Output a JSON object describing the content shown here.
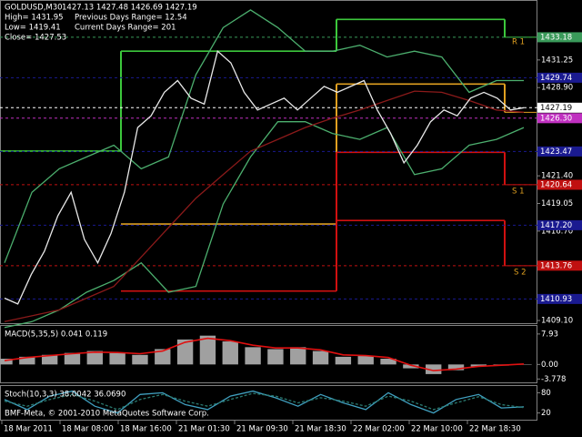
{
  "header": {
    "symbol": "GOLDUSD,M30",
    "ohlc": "1427.13 1427.48 1426.69 1427.19",
    "high": "High= 1431.95",
    "prev_range": "Previous Days Range= 12.54",
    "low": "Low= 1419.41",
    "cur_range": "Current Days Range= 201",
    "close": "Close= 1427.53"
  },
  "footer": "BMF-Meta, © 2001-2010 MetaQuotes Software Corp.",
  "time_axis": [
    "18 Mar 2011",
    "18 Mar 08:00",
    "18 Mar 16:00",
    "21 Mar 01:30",
    "21 Mar 09:30",
    "21 Mar 18:30",
    "22 Mar 02:00",
    "22 Mar 10:00",
    "22 Mar 18:30"
  ],
  "chart_data": [
    {
      "type": "line",
      "ylim": [
        1408.87,
        1436.27
      ],
      "yticks": [
        1431.25,
        {
          "value": 1428.9,
          "label": "1428.90"
        },
        {
          "value": 1421.4,
          "label": "1421.40"
        },
        1419.05,
        {
          "value": 1416.7,
          "label": "1416.70"
        },
        {
          "value": 1409.1,
          "label": "1409.10"
        }
      ],
      "series": [
        {
          "color": "#4caf6e",
          "values": [
            1414,
            1420,
            1422,
            1423,
            1424,
            1422,
            1423,
            1430,
            1434,
            1435.5,
            1434,
            1432,
            1432,
            1432.5,
            1431.5,
            1432,
            1431.5,
            1428.5,
            1429.5,
            1429.5
          ]
        },
        {
          "color": "#4caf6e",
          "values": [
            1408.5,
            1409,
            1410,
            1411.5,
            1412.5,
            1414,
            1411.5,
            1412,
            1419,
            1423,
            1426,
            1426,
            1425,
            1424.5,
            1425.5,
            1421.5,
            1422,
            1424,
            1424.5,
            1425.5
          ]
        },
        {
          "color": "#8b1a1a",
          "values": [
            1409,
            1409.5,
            1410,
            1411,
            1412,
            1414.5,
            1417,
            1419.5,
            1421.5,
            1423.5,
            1424.5,
            1425.5,
            1426.3,
            1427,
            1427.8,
            1428.6,
            1428.5,
            1427.8,
            1427,
            1426.8
          ]
        },
        {
          "color": "#e8e8e8",
          "values": [
            1411,
            1410.5,
            1413,
            1415,
            1418,
            1420,
            1416,
            1414,
            1416.5,
            1420,
            1425.5,
            1426.5,
            1428.5,
            1429.5,
            1428,
            1427.5,
            1432,
            1431,
            1428.5,
            1427,
            1427.5,
            1428,
            1427,
            1428,
            1429,
            1428.5,
            1429,
            1429.5,
            1427,
            1425,
            1422.5,
            1424,
            1426,
            1427,
            1426.5,
            1428,
            1428.5,
            1428,
            1427,
            1427.19
          ]
        }
      ],
      "steps": [
        {
          "color": "#3cc83c",
          "values": [
            1423.5,
            1432,
            1434.7,
            1433.18
          ]
        },
        {
          "color": "#e0a020",
          "values": [
            null,
            1417.3,
            1429.2,
            1426.8
          ]
        },
        {
          "color": "#d01010",
          "values": [
            null,
            1411.6,
            1423.4,
            1420.64
          ]
        },
        {
          "color": "#d01010",
          "values": [
            null,
            null,
            1417.6,
            1413.76
          ]
        }
      ],
      "levels": [
        {
          "value": 1433.18,
          "label": "1433.18",
          "color": "#3a9a5a"
        },
        {
          "value": 1429.74,
          "label": "1429.74",
          "color": "#1a1a90"
        },
        {
          "value": 1427.19,
          "label": "1427.19",
          "color": "#ffffff"
        },
        {
          "value": 1426.3,
          "label": "1426.30",
          "color": "#c030c0"
        },
        {
          "value": 1423.47,
          "label": "1423.47",
          "color": "#1a1a90"
        },
        {
          "value": 1420.64,
          "label": "1420.64",
          "color": "#c01010"
        },
        {
          "value": 1417.2,
          "label": "1417.20",
          "color": "#1a1a90"
        },
        {
          "value": 1413.76,
          "label": "1413.76",
          "color": "#c01010"
        },
        {
          "value": 1410.93,
          "label": "1410.93",
          "color": "#1a1a90"
        }
      ],
      "annotations": [
        "R 1",
        "S 1",
        "S 2"
      ]
    },
    {
      "type": "combo",
      "title": "MACD(5,35,5) 0.041 0.119",
      "ylim": [
        -4.66,
        10.03
      ],
      "yticks": [
        7.93,
        {
          "value": 0,
          "label": "0.00"
        },
        -3.778
      ],
      "series": [
        {
          "type": "bar",
          "color": "#a0a0a0",
          "values": [
            1.5,
            2,
            2.5,
            3,
            3.5,
            3,
            2.5,
            4,
            6.5,
            7.5,
            6,
            4.5,
            4,
            4.5,
            3.5,
            2,
            2.2,
            1.5,
            -1,
            -2.5,
            -1.5,
            -0.5,
            -0.3,
            0.041
          ]
        },
        {
          "type": "line",
          "color": "#e01010",
          "values": [
            1,
            1.8,
            2.3,
            2.8,
            3.2,
            3.1,
            2.8,
            3.5,
            5.8,
            6.8,
            6.2,
            5,
            4.3,
            4.3,
            3.8,
            2.5,
            2.3,
            1.8,
            -0.2,
            -1.6,
            -1.2,
            -0.5,
            -0.2,
            0.119
          ]
        }
      ]
    },
    {
      "type": "line",
      "title": "Stoch(10,3,3) 38.0042 36.0690",
      "ylim": [
        0,
        100
      ],
      "yticks": [
        80,
        20
      ],
      "series": [
        {
          "color": "#40a0c0",
          "values": [
            60,
            30,
            70,
            85,
            40,
            20,
            75,
            80,
            45,
            30,
            70,
            85,
            65,
            40,
            75,
            50,
            30,
            80,
            45,
            20,
            60,
            75,
            35,
            38.0042
          ]
        },
        {
          "color": "#2a7a70",
          "values": [
            55,
            40,
            60,
            75,
            55,
            30,
            60,
            75,
            55,
            40,
            60,
            78,
            70,
            50,
            65,
            55,
            40,
            70,
            55,
            30,
            50,
            68,
            45,
            36.069
          ]
        }
      ]
    }
  ]
}
